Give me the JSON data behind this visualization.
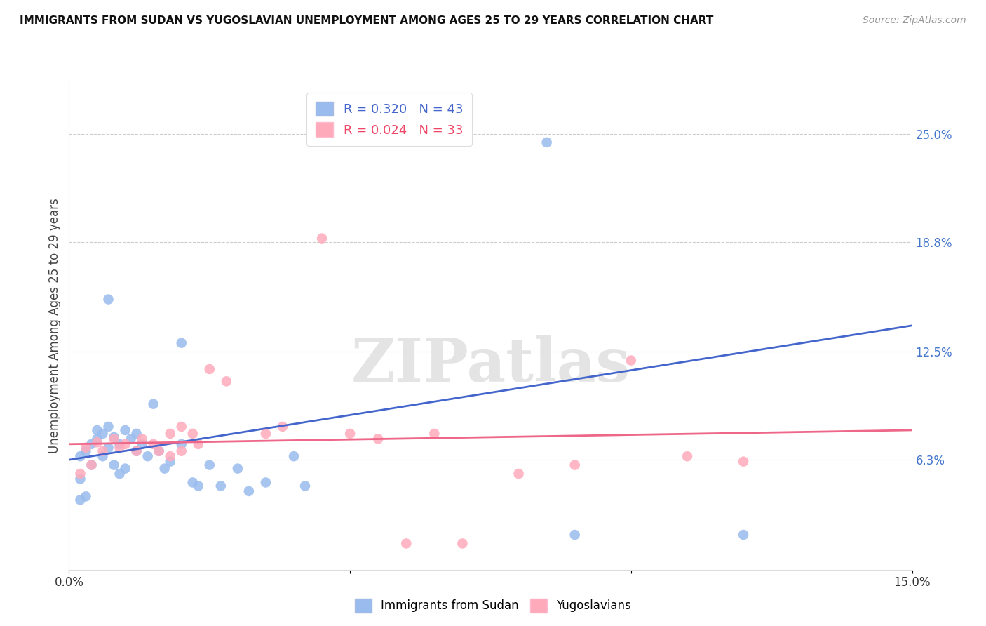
{
  "title": "IMMIGRANTS FROM SUDAN VS YUGOSLAVIAN UNEMPLOYMENT AMONG AGES 25 TO 29 YEARS CORRELATION CHART",
  "source": "Source: ZipAtlas.com",
  "ylabel": "Unemployment Among Ages 25 to 29 years",
  "xlim": [
    0.0,
    0.15
  ],
  "ylim": [
    0.0,
    0.28
  ],
  "ytick_vals": [
    0.063,
    0.125,
    0.188,
    0.25
  ],
  "ytick_labels": [
    "6.3%",
    "12.5%",
    "18.8%",
    "25.0%"
  ],
  "xtick_vals": [
    0.0,
    0.05,
    0.1,
    0.15
  ],
  "xtick_labels": [
    "0.0%",
    "",
    "",
    "15.0%"
  ],
  "blue_R": 0.32,
  "blue_N": 43,
  "pink_R": 0.024,
  "pink_N": 33,
  "blue_color": "#99BBEE",
  "pink_color": "#FFAABB",
  "line_blue": "#4466CC",
  "line_pink": "#EE6688",
  "watermark": "ZIPatlas",
  "blue_scatter": [
    [
      0.002,
      0.065
    ],
    [
      0.003,
      0.068
    ],
    [
      0.004,
      0.072
    ],
    [
      0.004,
      0.06
    ],
    [
      0.005,
      0.075
    ],
    [
      0.005,
      0.08
    ],
    [
      0.006,
      0.078
    ],
    [
      0.006,
      0.065
    ],
    [
      0.007,
      0.082
    ],
    [
      0.007,
      0.07
    ],
    [
      0.008,
      0.076
    ],
    [
      0.008,
      0.06
    ],
    [
      0.009,
      0.072
    ],
    [
      0.009,
      0.055
    ],
    [
      0.01,
      0.08
    ],
    [
      0.01,
      0.058
    ],
    [
      0.011,
      0.075
    ],
    [
      0.012,
      0.078
    ],
    [
      0.012,
      0.068
    ],
    [
      0.013,
      0.072
    ],
    [
      0.014,
      0.065
    ],
    [
      0.015,
      0.095
    ],
    [
      0.016,
      0.068
    ],
    [
      0.017,
      0.058
    ],
    [
      0.018,
      0.062
    ],
    [
      0.02,
      0.072
    ],
    [
      0.022,
      0.05
    ],
    [
      0.023,
      0.048
    ],
    [
      0.025,
      0.06
    ],
    [
      0.027,
      0.048
    ],
    [
      0.03,
      0.058
    ],
    [
      0.032,
      0.045
    ],
    [
      0.035,
      0.05
    ],
    [
      0.04,
      0.065
    ],
    [
      0.042,
      0.048
    ],
    [
      0.007,
      0.155
    ],
    [
      0.02,
      0.13
    ],
    [
      0.085,
      0.245
    ],
    [
      0.09,
      0.02
    ],
    [
      0.12,
      0.02
    ],
    [
      0.003,
      0.042
    ],
    [
      0.002,
      0.052
    ],
    [
      0.002,
      0.04
    ]
  ],
  "pink_scatter": [
    [
      0.003,
      0.07
    ],
    [
      0.005,
      0.073
    ],
    [
      0.006,
      0.068
    ],
    [
      0.008,
      0.075
    ],
    [
      0.009,
      0.07
    ],
    [
      0.01,
      0.072
    ],
    [
      0.012,
      0.068
    ],
    [
      0.013,
      0.075
    ],
    [
      0.015,
      0.072
    ],
    [
      0.016,
      0.068
    ],
    [
      0.018,
      0.078
    ],
    [
      0.018,
      0.065
    ],
    [
      0.02,
      0.082
    ],
    [
      0.02,
      0.068
    ],
    [
      0.022,
      0.078
    ],
    [
      0.023,
      0.072
    ],
    [
      0.025,
      0.115
    ],
    [
      0.028,
      0.108
    ],
    [
      0.035,
      0.078
    ],
    [
      0.038,
      0.082
    ],
    [
      0.045,
      0.19
    ],
    [
      0.05,
      0.078
    ],
    [
      0.055,
      0.075
    ],
    [
      0.065,
      0.078
    ],
    [
      0.09,
      0.06
    ],
    [
      0.1,
      0.12
    ],
    [
      0.11,
      0.065
    ],
    [
      0.12,
      0.062
    ],
    [
      0.06,
      0.015
    ],
    [
      0.07,
      0.015
    ],
    [
      0.08,
      0.055
    ],
    [
      0.002,
      0.055
    ],
    [
      0.004,
      0.06
    ]
  ],
  "blue_line_x": [
    0.0,
    0.15
  ],
  "blue_line_y": [
    0.063,
    0.14
  ],
  "pink_line_x": [
    0.0,
    0.15
  ],
  "pink_line_y": [
    0.072,
    0.08
  ]
}
